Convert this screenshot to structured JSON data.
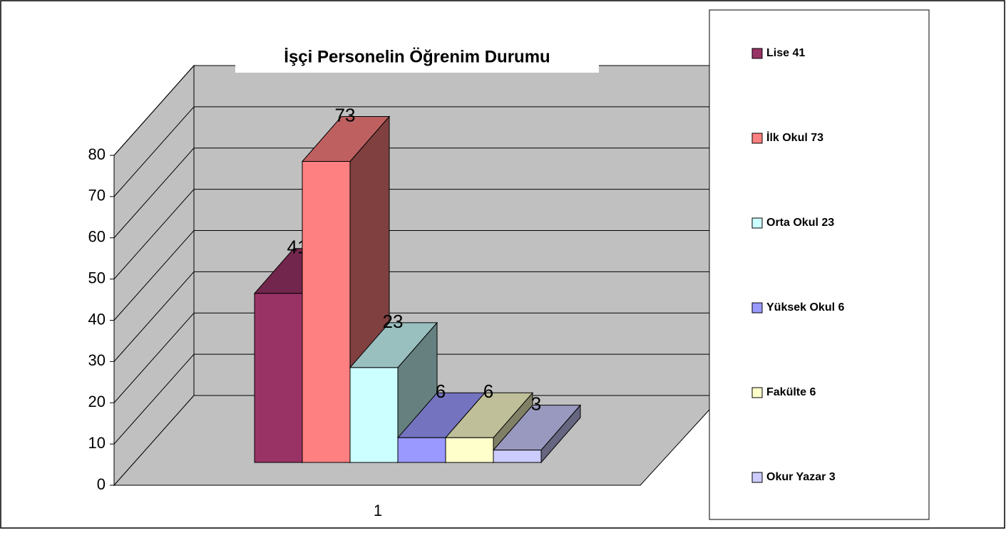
{
  "chart_data": {
    "type": "bar3d",
    "title": "İşçi Personelin Öğrenim Durumu",
    "categories": [
      "1"
    ],
    "series": [
      {
        "name": "Lise 41",
        "color": "#993366",
        "values": [
          41
        ]
      },
      {
        "name": "İlk Okul 73",
        "color": "#FF8080",
        "values": [
          73
        ]
      },
      {
        "name": "Orta Okul 23",
        "color": "#CCFFFF",
        "values": [
          23
        ]
      },
      {
        "name": "Yüksek Okul 6",
        "color": "#9999FF",
        "values": [
          6
        ]
      },
      {
        "name": "Fakülte 6",
        "color": "#FFFFCC",
        "values": [
          6
        ]
      },
      {
        "name": "Okur Yazar 3",
        "color": "#CCCCFF",
        "values": [
          3
        ]
      }
    ],
    "ylim": [
      0,
      80
    ],
    "yticks": [
      0,
      10,
      20,
      30,
      40,
      50,
      60,
      70,
      80
    ],
    "grid": true,
    "legend": "right"
  }
}
